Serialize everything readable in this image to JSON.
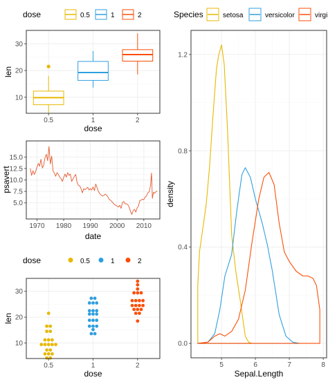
{
  "chart_data": [
    {
      "id": "boxplot",
      "type": "box",
      "xlabel": "dose",
      "ylabel": "len",
      "categories": [
        "0.5",
        "1",
        "2"
      ],
      "ylim": [
        4,
        35
      ],
      "yticks": [
        10,
        20,
        30
      ],
      "legend": {
        "title": "dose",
        "position": "top",
        "entries": [
          "0.5",
          "1",
          "2"
        ]
      },
      "boxes": [
        {
          "category": "0.5",
          "min": 4.2,
          "q1": 7.2,
          "median": 9.85,
          "q3": 12.3,
          "max": 18.0,
          "outliers": [
            21.5
          ],
          "color": "#E7B800"
        },
        {
          "category": "1",
          "min": 13.6,
          "q1": 16.3,
          "median": 19.25,
          "q3": 23.4,
          "max": 27.3,
          "outliers": [],
          "color": "#2E9FDF"
        },
        {
          "category": "2",
          "min": 18.5,
          "q1": 23.5,
          "median": 25.95,
          "q3": 27.8,
          "max": 33.9,
          "outliers": [],
          "color": "#FC4E07"
        }
      ]
    },
    {
      "id": "timeseries",
      "type": "line",
      "xlabel": "date",
      "ylabel": "psavert",
      "xlim": [
        1966,
        2016
      ],
      "ylim": [
        1.5,
        18.5
      ],
      "xticks": [
        1970,
        1980,
        1990,
        2000,
        2010
      ],
      "yticks": [
        5.0,
        7.5,
        10.0,
        12.5,
        15.0
      ],
      "ytick_labels": [
        "5.0",
        "7.5",
        "10.0",
        "12.5",
        "15.0"
      ],
      "color": "#E4572E",
      "x": [
        1967.5,
        1968.0,
        1968.5,
        1969.0,
        1969.5,
        1970.0,
        1970.5,
        1971.0,
        1971.5,
        1972.0,
        1972.5,
        1973.0,
        1973.5,
        1974.0,
        1974.5,
        1975.0,
        1975.5,
        1976.0,
        1976.5,
        1977.0,
        1977.5,
        1978.0,
        1978.5,
        1979.0,
        1979.5,
        1980.0,
        1980.5,
        1981.0,
        1981.5,
        1982.0,
        1982.5,
        1983.0,
        1983.5,
        1984.0,
        1984.5,
        1985.0,
        1985.5,
        1986.0,
        1986.5,
        1987.0,
        1987.5,
        1988.0,
        1988.5,
        1989.0,
        1989.5,
        1990.0,
        1990.5,
        1991.0,
        1991.5,
        1992.0,
        1992.5,
        1993.0,
        1993.5,
        1994.0,
        1994.5,
        1995.0,
        1995.5,
        1996.0,
        1996.5,
        1997.0,
        1997.5,
        1998.0,
        1998.5,
        1999.0,
        1999.5,
        2000.0,
        2000.5,
        2001.0,
        2001.5,
        2002.0,
        2002.5,
        2003.0,
        2003.5,
        2004.0,
        2004.5,
        2005.0,
        2005.5,
        2006.0,
        2006.5,
        2007.0,
        2007.5,
        2008.0,
        2008.5,
        2009.0,
        2009.5,
        2010.0,
        2010.5,
        2011.0,
        2011.5,
        2012.0,
        2012.5,
        2012.9,
        2013.2,
        2013.6,
        2014.0,
        2014.5,
        2015.0
      ],
      "y": [
        12.5,
        11.0,
        12.0,
        11.2,
        11.8,
        12.8,
        13.6,
        13.0,
        14.5,
        12.6,
        13.2,
        14.8,
        15.6,
        14.2,
        17.3,
        13.5,
        15.2,
        12.0,
        11.5,
        10.8,
        11.6,
        11.2,
        10.6,
        10.3,
        9.7,
        10.5,
        11.3,
        10.6,
        11.6,
        11.0,
        11.3,
        9.7,
        10.2,
        10.8,
        11.2,
        9.5,
        8.8,
        8.7,
        8.1,
        7.2,
        8.1,
        7.9,
        8.1,
        8.4,
        7.8,
        8.1,
        7.8,
        8.5,
        7.7,
        9.1,
        8.3,
        7.5,
        7.0,
        6.7,
        6.5,
        6.6,
        6.9,
        6.7,
        6.4,
        5.8,
        5.6,
        5.3,
        5.0,
        4.6,
        4.5,
        4.3,
        4.1,
        4.5,
        3.8,
        5.1,
        5.3,
        4.8,
        4.8,
        4.6,
        4.1,
        3.2,
        2.5,
        3.3,
        3.6,
        3.0,
        3.9,
        4.3,
        5.5,
        5.6,
        5.8,
        5.7,
        6.3,
        6.5,
        7.2,
        7.4,
        8.8,
        11.5,
        6.0,
        7.3,
        7.1,
        7.4,
        7.6
      ]
    },
    {
      "id": "dotplot",
      "type": "scatter",
      "xlabel": "dose",
      "ylabel": "len",
      "categories": [
        "0.5",
        "1",
        "2"
      ],
      "ylim": [
        4,
        35
      ],
      "yticks": [
        10,
        20,
        30
      ],
      "legend": {
        "title": "dose",
        "position": "top",
        "entries": [
          "0.5",
          "1",
          "2"
        ]
      },
      "series": [
        {
          "name": "0.5",
          "color": "#E7B800",
          "values": [
            4.2,
            5.2,
            5.8,
            6.4,
            7.0,
            7.3,
            8.2,
            9.4,
            9.7,
            9.7,
            10.0,
            10.0,
            11.2,
            11.2,
            11.5,
            14.5,
            15.2,
            16.5,
            17.6,
            21.5
          ]
        },
        {
          "name": "1",
          "color": "#2E9FDF",
          "values": [
            13.6,
            14.5,
            15.2,
            16.5,
            16.5,
            17.3,
            18.8,
            19.7,
            20.0,
            21.2,
            21.5,
            22.4,
            22.5,
            23.3,
            23.6,
            25.5,
            25.8,
            26.4,
            27.3,
            27.3
          ]
        },
        {
          "name": "2",
          "color": "#FC4E07",
          "values": [
            18.5,
            21.5,
            22.4,
            23.0,
            23.3,
            23.6,
            24.5,
            24.8,
            25.2,
            25.5,
            26.4,
            26.4,
            26.7,
            27.3,
            29.4,
            29.5,
            30.9,
            32.5,
            33.9,
            29.5
          ]
        }
      ]
    },
    {
      "id": "density",
      "type": "line",
      "xlabel": "Sepal.Length",
      "ylabel": "density",
      "xlim": [
        4.1,
        8.1
      ],
      "ylim": [
        -0.06,
        1.3
      ],
      "xticks": [
        5,
        6,
        7,
        8
      ],
      "yticks": [
        0.0,
        0.4,
        0.8,
        1.2
      ],
      "ytick_labels": [
        "0.0",
        "0.4",
        "0.8",
        "1.2"
      ],
      "legend": {
        "title": "Species",
        "position": "top",
        "entries": [
          "setosa",
          "versicolor",
          "virginica"
        ]
      },
      "series": [
        {
          "name": "setosa",
          "color": "#E7B800",
          "x": [
            4.3,
            4.35,
            4.45,
            4.55,
            4.65,
            4.75,
            4.85,
            4.92,
            5.0,
            5.08,
            5.18,
            5.3,
            5.42,
            5.55,
            5.7,
            5.8,
            5.9
          ],
          "y": [
            0.24,
            0.38,
            0.48,
            0.58,
            0.74,
            0.95,
            1.14,
            1.2,
            1.24,
            1.16,
            0.88,
            0.45,
            0.3,
            0.18,
            0.03,
            0.005,
            0.0
          ]
        },
        {
          "name": "versicolor",
          "color": "#2E9FDF",
          "x": [
            4.3,
            4.6,
            4.8,
            4.95,
            5.1,
            5.3,
            5.45,
            5.6,
            5.7,
            5.85,
            6.0,
            6.2,
            6.35,
            6.5,
            6.7,
            6.9,
            7.1,
            7.3
          ],
          "y": [
            0.0,
            0.005,
            0.04,
            0.14,
            0.28,
            0.37,
            0.55,
            0.7,
            0.73,
            0.69,
            0.6,
            0.5,
            0.41,
            0.3,
            0.12,
            0.03,
            0.005,
            0.0
          ]
        },
        {
          "name": "virginica",
          "color": "#FC4E07",
          "x": [
            4.3,
            4.6,
            4.8,
            4.95,
            5.1,
            5.3,
            5.5,
            5.7,
            5.9,
            6.1,
            6.25,
            6.4,
            6.55,
            6.7,
            6.85,
            7.0,
            7.2,
            7.4,
            7.55,
            7.7,
            7.8,
            7.9
          ],
          "y": [
            0.0,
            0.005,
            0.03,
            0.04,
            0.03,
            0.05,
            0.1,
            0.22,
            0.42,
            0.6,
            0.69,
            0.71,
            0.66,
            0.5,
            0.38,
            0.34,
            0.3,
            0.28,
            0.28,
            0.27,
            0.24,
            0.14
          ]
        }
      ]
    }
  ]
}
